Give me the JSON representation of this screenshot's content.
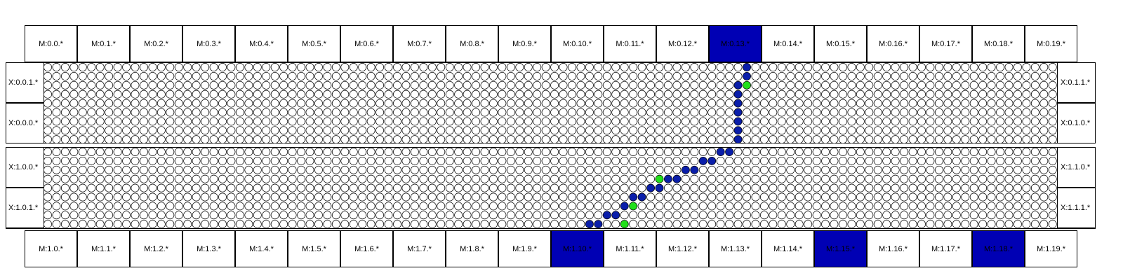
{
  "modules_top": [
    "M:0.0.*",
    "M:0.1.*",
    "M:0.2.*",
    "M:0.3.*",
    "M:0.4.*",
    "M:0.5.*",
    "M:0.6.*",
    "M:0.7.*",
    "M:0.8.*",
    "M:0.9.*",
    "M:0.10.*",
    "M:0.11.*",
    "M:0.12.*",
    "M:0.13.*",
    "M:0.14.*",
    "M:0.15.*",
    "M:0.16.*",
    "M:0.17.*",
    "M:0.18.*",
    "M:0.19.*"
  ],
  "modules_bottom": [
    "M:1.0.*",
    "M:1.1.*",
    "M:1.2.*",
    "M:1.3.*",
    "M:1.4.*",
    "M:1.5.*",
    "M:1.6.*",
    "M:1.7.*",
    "M:1.8.*",
    "M:1.9.*",
    "M:1.10.*",
    "M:1.11.*",
    "M:1.12.*",
    "M:1.13.*",
    "M:1.14.*",
    "M:1.15.*",
    "M:1.16.*",
    "M:1.17.*",
    "M:1.18.*",
    "M:1.19.*"
  ],
  "highlighted_top": [
    13
  ],
  "highlighted_bottom": [
    10,
    15,
    18
  ],
  "xlabels_top": {
    "left": [
      "X:0.0.1.*",
      "X:0.0.0.*"
    ],
    "right": [
      "X:0.1.1.*",
      "X:0.1.0.*"
    ]
  },
  "xlabels_bottom": {
    "left": [
      "X:1.0.0.*",
      "X:1.0.1.*"
    ],
    "right": [
      "X:1.1.0.*",
      "X:1.1.1.*"
    ]
  },
  "colors": {
    "highlight": "#0000b4",
    "path": "#0a1eaa",
    "hit": "#22e01a",
    "empty": "#ffffff"
  }
}
